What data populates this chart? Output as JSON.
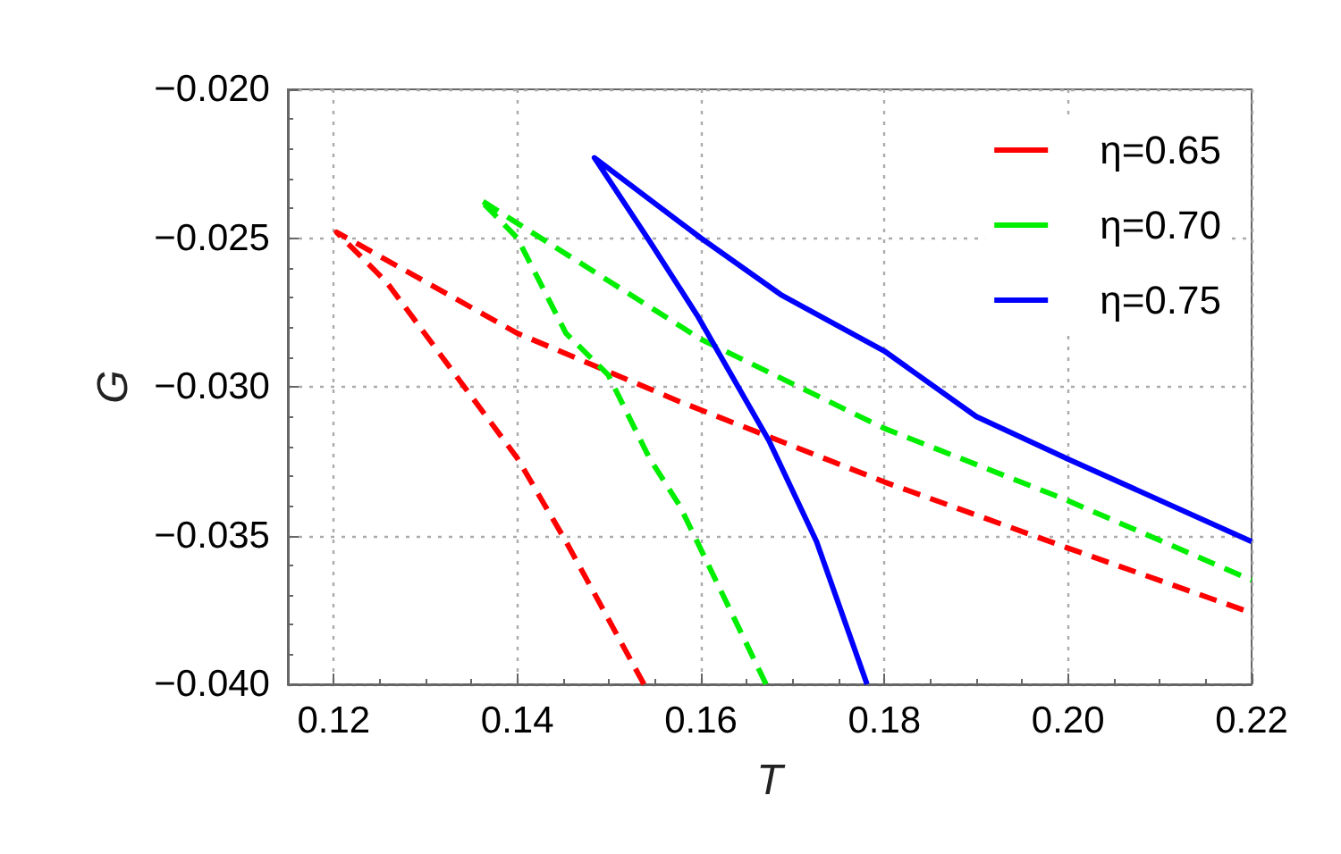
{
  "chart_data": {
    "type": "line",
    "xlabel": "T",
    "ylabel": "G",
    "xlim": [
      0.115,
      0.22
    ],
    "ylim": [
      -0.04,
      -0.02
    ],
    "xticks": [
      {
        "value": 0.12,
        "label": "0.12"
      },
      {
        "value": 0.14,
        "label": "0.14"
      },
      {
        "value": 0.16,
        "label": "0.16"
      },
      {
        "value": 0.18,
        "label": "0.18"
      },
      {
        "value": 0.2,
        "label": "0.20"
      },
      {
        "value": 0.22,
        "label": "0.22"
      }
    ],
    "yticks": [
      {
        "value": -0.04,
        "label": "−0.040"
      },
      {
        "value": -0.035,
        "label": "−0.035"
      },
      {
        "value": -0.03,
        "label": "−0.030"
      },
      {
        "value": -0.025,
        "label": "−0.025"
      },
      {
        "value": -0.02,
        "label": "−0.020"
      }
    ],
    "grid": true,
    "legend": "top right",
    "marker": "none",
    "series": [
      {
        "name": "η=0.65",
        "color": "#ff0000",
        "line_style": "dashed",
        "x": [
          0.1538,
          0.1453,
          0.14,
          0.1323,
          0.1258,
          0.1203,
          0.14,
          0.1577,
          0.18,
          0.1998,
          0.22
        ],
        "values": [
          -0.04,
          -0.0352,
          -0.0324,
          -0.0292,
          -0.0265,
          -0.0248,
          -0.0282,
          -0.0305,
          -0.0332,
          -0.0354,
          -0.0376
        ]
      },
      {
        "name": "η=0.70",
        "color": "#00ee00",
        "line_style": "dashed",
        "x": [
          0.1671,
          0.1577,
          0.1544,
          0.1499,
          0.1453,
          0.14,
          0.1359,
          0.14,
          0.16,
          0.18,
          0.1998,
          0.22
        ],
        "values": [
          -0.04,
          -0.034,
          -0.0324,
          -0.0296,
          -0.0282,
          -0.025,
          -0.0237,
          -0.0245,
          -0.0284,
          -0.0314,
          -0.0338,
          -0.0365
        ]
      },
      {
        "name": "η=0.75",
        "color": "#0000ff",
        "line_style": "solid",
        "x": [
          0.1781,
          0.1726,
          0.1674,
          0.1596,
          0.1544,
          0.1484,
          0.16,
          0.1687,
          0.18,
          0.19,
          0.1998,
          0.22
        ],
        "values": [
          -0.04,
          -0.0352,
          -0.0318,
          -0.0276,
          -0.0251,
          -0.0223,
          -0.025,
          -0.0269,
          -0.0288,
          -0.031,
          -0.0324,
          -0.0352
        ]
      }
    ]
  }
}
